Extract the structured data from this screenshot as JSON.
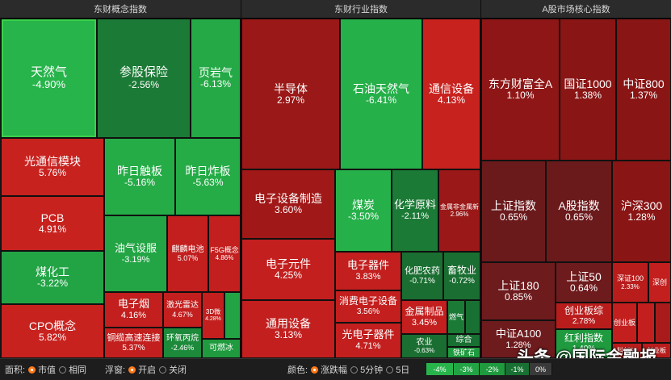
{
  "panels": {
    "concept": "东财概念指数",
    "industry": "东财行业指数",
    "core": "A股市场核心指数"
  },
  "tiles": {
    "trq": {
      "name": "天然气",
      "value": "-4.90%"
    },
    "cgbx": {
      "name": "参股保险",
      "value": "-2.56%"
    },
    "yyq": {
      "name": "页岩气",
      "value": "-6.13%"
    },
    "gtx": {
      "name": "光通信模块",
      "value": "5.76%"
    },
    "zrcb": {
      "name": "昨日触板",
      "value": "-5.16%"
    },
    "zrzb": {
      "name": "昨日炸板",
      "value": "-5.63%"
    },
    "pcb": {
      "name": "PCB",
      "value": "4.91%"
    },
    "mhg": {
      "name": "煤化工",
      "value": "-3.22%"
    },
    "cpo": {
      "name": "CPO概念",
      "value": "5.82%"
    },
    "yqsb": {
      "name": "油气设服",
      "value": "-3.19%"
    },
    "qldc": {
      "name": "麒麟电池",
      "value": "5.07%"
    },
    "f5g": {
      "name": "F5G概念",
      "value": "4.86%"
    },
    "dzy": {
      "name": "电子烟",
      "value": "4.16%"
    },
    "jgld": {
      "name": "激光雷达",
      "value": "4.67%"
    },
    "sddy": {
      "name": "3D微",
      "value": "4.28%"
    },
    "dlgs": {
      "name": "铜缆高速连接",
      "value": "5.37%"
    },
    "hwbx": {
      "name": "环氧丙烷",
      "value": "-2.46%"
    },
    "krb": {
      "name": "可燃冰",
      "value": ""
    },
    "bdt": {
      "name": "半导体",
      "value": "2.97%"
    },
    "sytrq": {
      "name": "石油天然气",
      "value": "-6.41%"
    },
    "txsb": {
      "name": "通信设备",
      "value": "4.13%"
    },
    "dzsbzz": {
      "name": "电子设备制造",
      "value": "3.60%"
    },
    "mt": {
      "name": "煤炭",
      "value": "-3.50%"
    },
    "hxyl": {
      "name": "化学原料",
      "value": "-2.11%"
    },
    "jsfj": {
      "name": "金属非金属新",
      "value": "2.96%"
    },
    "dzyj": {
      "name": "电子元件",
      "value": "4.25%"
    },
    "dzqj": {
      "name": "电子器件",
      "value": "3.83%"
    },
    "hfny": {
      "name": "化肥农药",
      "value": "-0.71%"
    },
    "xmy": {
      "name": "畜牧业",
      "value": "-0.72%"
    },
    "xfdz": {
      "name": "消费电子设备",
      "value": "3.56%"
    },
    "tysb": {
      "name": "通用设备",
      "value": "3.13%"
    },
    "jszp": {
      "name": "金属制品",
      "value": "3.45%"
    },
    "rq": {
      "name": "燃气",
      "value": ""
    },
    "gdzqj": {
      "name": "光电子器件",
      "value": "4.71%"
    },
    "ny": {
      "name": "农业",
      "value": "-0.63%"
    },
    "zh": {
      "name": "综合",
      "value": ""
    },
    "tlyl": {
      "name": "铁矿石",
      "value": ""
    },
    "dfcf": {
      "name": "东方财富全A",
      "value": "1.10%"
    },
    "gz1000": {
      "name": "国证1000",
      "value": "1.38%"
    },
    "zz800": {
      "name": "中证800",
      "value": "1.37%"
    },
    "szzs": {
      "name": "上证指数",
      "value": "0.65%"
    },
    "agzs": {
      "name": "A股指数",
      "value": "0.65%"
    },
    "hs300": {
      "name": "沪深300",
      "value": "1.28%"
    },
    "sz180": {
      "name": "上证180",
      "value": "0.85%"
    },
    "sz50": {
      "name": "上证50",
      "value": "0.64%"
    },
    "sz100": {
      "name": "深证100",
      "value": "2.33%"
    },
    "szc": {
      "name": "深创",
      "value": ""
    },
    "cybz": {
      "name": "创业板综",
      "value": "2.78%"
    },
    "cyb": {
      "name": "创业板",
      "value": ""
    },
    "zza100": {
      "name": "中证A100",
      "value": "1.28%"
    },
    "hlzs": {
      "name": "红利指数",
      "value": "1.40%"
    },
    "kc50": {
      "name": "科创50",
      "value": ""
    },
    "cyb2": {
      "name": "创业板",
      "value": ""
    }
  },
  "bottom": {
    "area_label": "面积:",
    "area_opt1": "市值",
    "area_opt2": "相同",
    "float_label": "浮窗:",
    "float_opt1": "开启",
    "float_opt2": "关闭",
    "color_label": "颜色:",
    "color_opt1": "涨跌幅",
    "color_opt2": "5分钟",
    "color_opt3": "5日",
    "legend": [
      "-4%",
      "-3%",
      "-2%",
      "-1%",
      "0%"
    ]
  },
  "watermark": "头条 @国际金融报",
  "colors": {
    "red_dark": "#8e1616",
    "red": "#c4201f",
    "green": "#1f9a3e",
    "green_light": "#24b24a",
    "green_dark": "#187032"
  }
}
